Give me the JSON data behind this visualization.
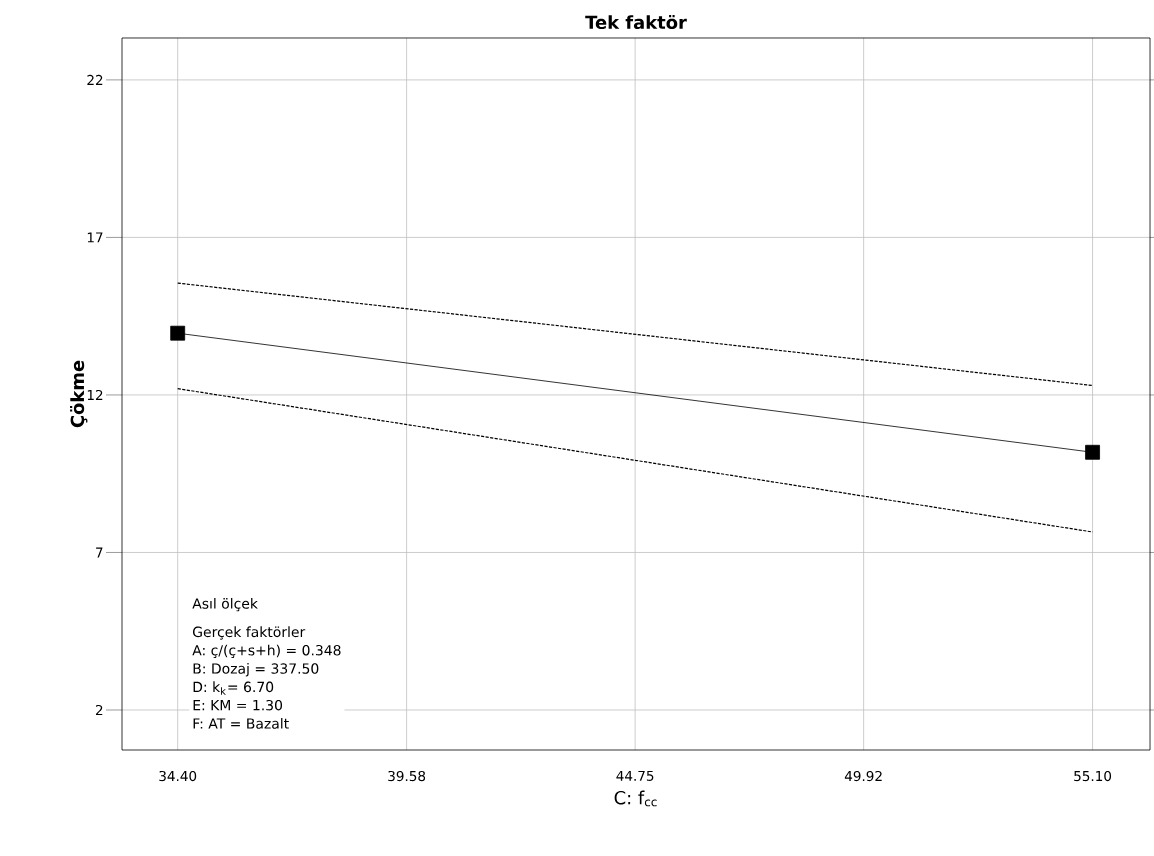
{
  "chart_data": {
    "type": "line",
    "title": "Tek faktör",
    "xlabel": "C: f$_{cc}$",
    "ylabel": "Çökme",
    "x": [
      34.4,
      55.1
    ],
    "series": [
      {
        "color": "#000000",
        "values": [
          13.96,
          10.18
        ]
      },
      {
        "color": "#000000",
        "values": [
          15.55,
          12.3
        ],
        "line_style": "dotted",
        "marker": "none"
      },
      {
        "color": "#000000",
        "values": [
          12.2,
          7.65
        ],
        "line_style": "dotted",
        "marker": "none"
      }
    ],
    "xlim": [
      33.14,
      56.4
    ],
    "ylim": [
      0.73,
      23.33
    ],
    "xticks": [
      {
        "value": 34.4,
        "label": "34.40"
      },
      {
        "value": 39.58,
        "label": "39.58"
      },
      {
        "value": 44.75,
        "label": "44.75"
      },
      {
        "value": 49.92,
        "label": "49.92"
      },
      {
        "value": 55.1,
        "label": "55.10"
      }
    ],
    "yticks": [
      2,
      7,
      12,
      17,
      22
    ],
    "grid": true,
    "marker": "square",
    "line_style": "solid",
    "annotations": [
      "Asıl ölçek",
      "Gerçek faktörler",
      "A: ç/(ç+s+h) = 0.348",
      "B: Dozaj = 337.50",
      "D: k$_{k}$= 6.70",
      "E: KM = 1.30",
      "F: AT = Bazalt"
    ]
  }
}
